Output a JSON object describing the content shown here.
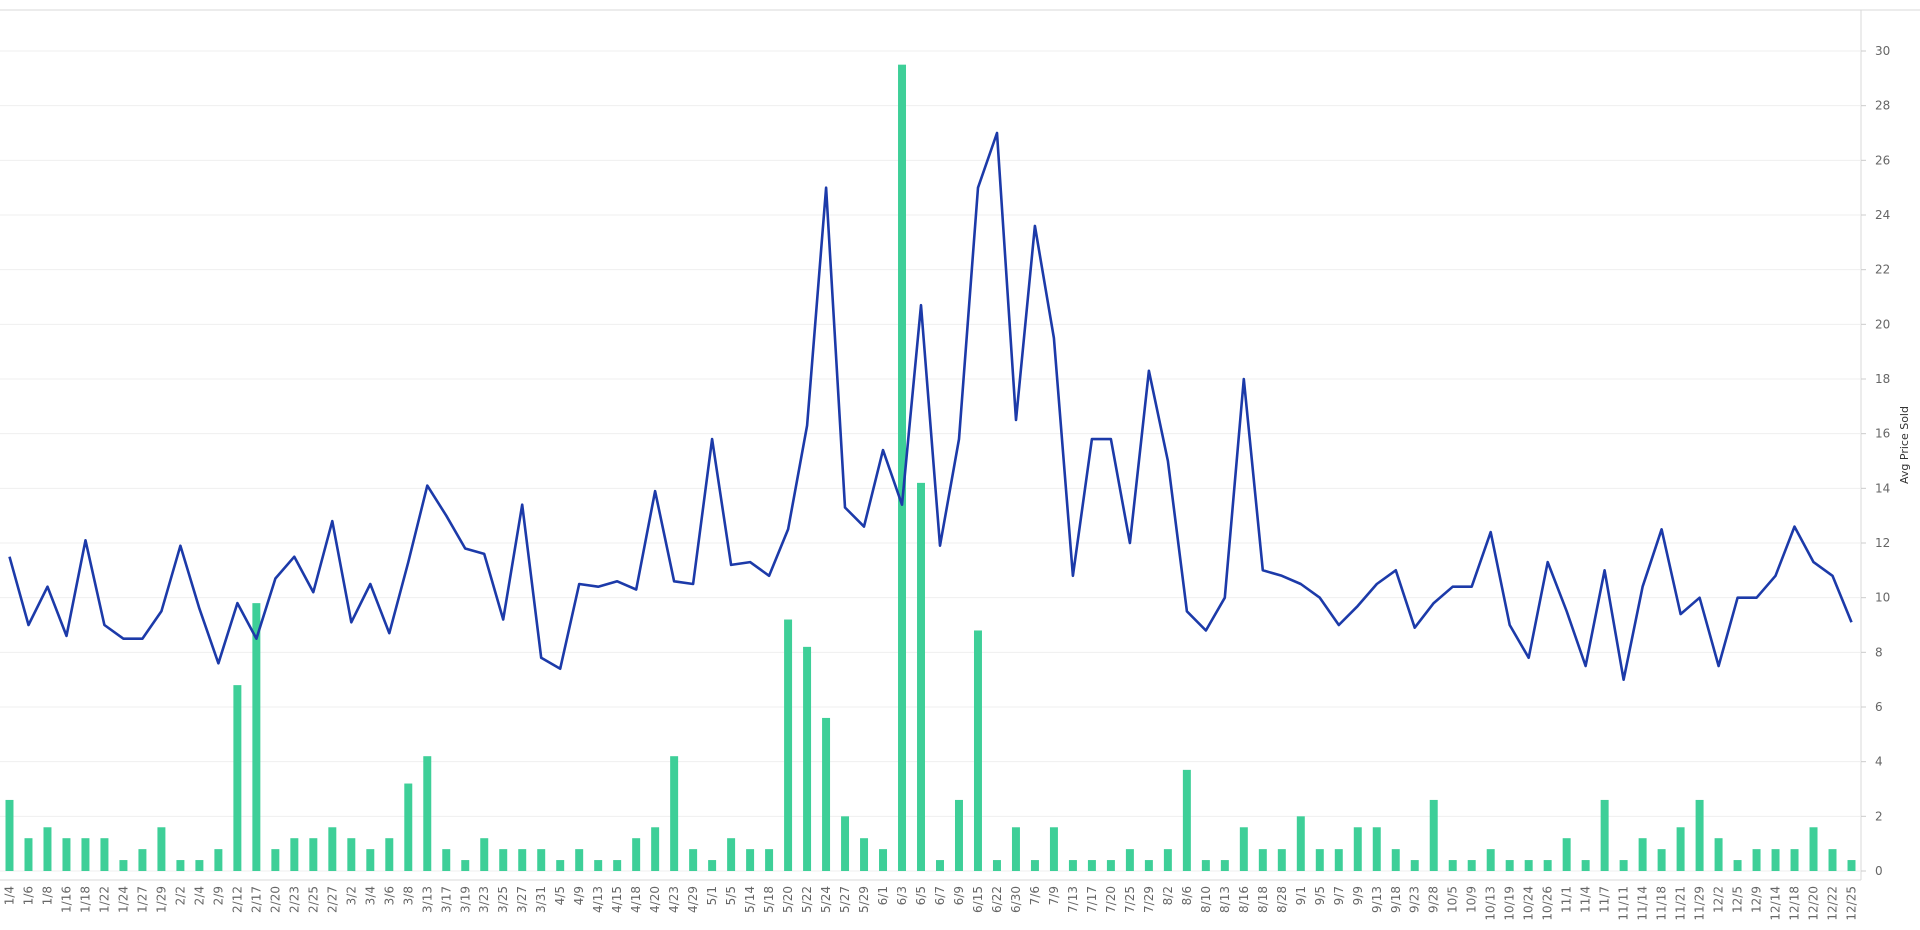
{
  "chart_data": {
    "type": "combo",
    "ylabel": "Avg Price Sold",
    "ylim": [
      0,
      30
    ],
    "yticks": [
      0,
      2,
      4,
      6,
      8,
      10,
      12,
      14,
      16,
      18,
      20,
      22,
      24,
      26,
      28,
      30
    ],
    "grid": true,
    "categories": [
      "1/4",
      "1/6",
      "1/8",
      "1/16",
      "1/18",
      "1/22",
      "1/24",
      "1/27",
      "1/29",
      "2/2",
      "2/4",
      "2/9",
      "2/12",
      "2/17",
      "2/20",
      "2/23",
      "2/25",
      "2/27",
      "3/2",
      "3/4",
      "3/6",
      "3/8",
      "3/13",
      "3/17",
      "3/19",
      "3/23",
      "3/25",
      "3/27",
      "3/31",
      "4/5",
      "4/9",
      "4/13",
      "4/15",
      "4/18",
      "4/20",
      "4/23",
      "4/29",
      "5/1",
      "5/5",
      "5/14",
      "5/18",
      "5/20",
      "5/22",
      "5/24",
      "5/27",
      "5/29",
      "6/1",
      "6/3",
      "6/5",
      "6/7",
      "6/9",
      "6/15",
      "6/22",
      "6/30",
      "7/6",
      "7/9",
      "7/13",
      "7/17",
      "7/20",
      "7/25",
      "7/29",
      "8/2",
      "8/6",
      "8/10",
      "8/13",
      "8/16",
      "8/18",
      "8/28",
      "9/1",
      "9/5",
      "9/7",
      "9/9",
      "9/13",
      "9/18",
      "9/23",
      "9/28",
      "10/5",
      "10/9",
      "10/13",
      "10/19",
      "10/24",
      "10/26",
      "11/1",
      "11/4",
      "11/7",
      "11/11",
      "11/14",
      "11/18",
      "11/21",
      "11/29",
      "12/2",
      "12/5",
      "12/9",
      "12/14",
      "12/18",
      "12/20",
      "12/22",
      "12/25"
    ],
    "series": [
      {
        "mark": "bar",
        "color": "#3ecf98",
        "values": [
          2.6,
          1.2,
          1.6,
          1.2,
          1.2,
          1.2,
          0.4,
          0.8,
          1.6,
          0.4,
          0.4,
          0.8,
          6.8,
          9.8,
          0.8,
          1.2,
          1.2,
          1.6,
          1.2,
          0.8,
          1.2,
          3.2,
          4.2,
          0.8,
          0.4,
          1.2,
          0.8,
          0.8,
          0.8,
          0.4,
          0.8,
          0.4,
          0.4,
          1.2,
          1.6,
          4.2,
          0.8,
          0.4,
          1.2,
          0.8,
          0.8,
          9.2,
          8.2,
          5.6,
          2.0,
          1.2,
          0.8,
          29.5,
          14.2,
          0.4,
          2.6,
          8.8,
          0.4,
          1.6,
          0.4,
          1.6,
          0.4,
          0.4,
          0.4,
          0.8,
          0.4,
          0.8,
          3.7,
          0.4,
          0.4,
          1.6,
          0.8,
          0.8,
          2.0,
          0.8,
          0.8,
          1.6,
          1.6,
          0.8,
          0.4,
          2.6,
          0.4,
          0.4,
          0.8,
          0.4,
          0.4,
          0.4,
          1.2,
          0.4,
          2.6,
          0.4,
          1.2,
          0.8,
          1.6,
          2.6,
          1.2,
          0.4,
          0.8,
          0.8,
          0.8,
          1.6,
          0.8,
          0.4
        ]
      },
      {
        "mark": "line",
        "color": "#1c3aa9",
        "values": [
          11.5,
          9.0,
          10.4,
          8.6,
          12.1,
          9.0,
          8.5,
          8.5,
          9.5,
          11.9,
          9.6,
          7.6,
          9.8,
          8.5,
          10.7,
          11.5,
          10.2,
          12.8,
          9.1,
          10.5,
          8.7,
          11.3,
          14.1,
          13.0,
          11.8,
          11.6,
          9.2,
          13.4,
          7.8,
          7.4,
          10.5,
          10.4,
          10.6,
          10.3,
          13.9,
          10.6,
          10.5,
          15.8,
          11.2,
          11.3,
          10.8,
          12.5,
          16.3,
          25.0,
          13.3,
          12.6,
          15.4,
          13.4,
          20.7,
          11.9,
          15.8,
          25.0,
          27.0,
          16.5,
          23.6,
          19.5,
          10.8,
          15.8,
          15.8,
          12.0,
          18.3,
          15.0,
          9.5,
          8.8,
          10.0,
          18.0,
          11.0,
          10.8,
          10.5,
          10.0,
          9.0,
          9.7,
          10.5,
          11.0,
          8.9,
          9.8,
          10.4,
          10.4,
          12.4,
          9.0,
          7.8,
          11.3,
          9.5,
          7.5,
          11.0,
          7.0,
          10.4,
          12.5,
          9.4,
          10.0,
          7.5,
          10.0,
          10.0,
          10.8,
          12.6,
          11.3,
          10.8,
          9.1
        ]
      }
    ]
  }
}
